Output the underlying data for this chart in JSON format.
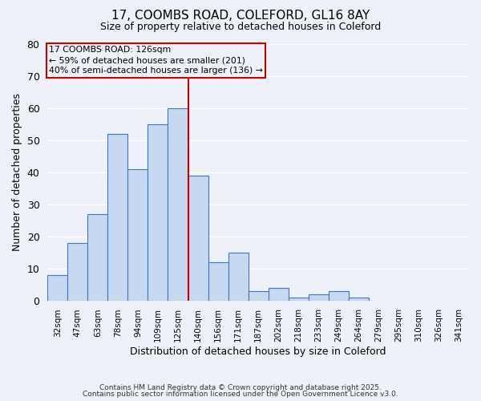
{
  "title1": "17, COOMBS ROAD, COLEFORD, GL16 8AY",
  "title2": "Size of property relative to detached houses in Coleford",
  "xlabel": "Distribution of detached houses by size in Coleford",
  "ylabel": "Number of detached properties",
  "bin_labels": [
    "32sqm",
    "47sqm",
    "63sqm",
    "78sqm",
    "94sqm",
    "109sqm",
    "125sqm",
    "140sqm",
    "156sqm",
    "171sqm",
    "187sqm",
    "202sqm",
    "218sqm",
    "233sqm",
    "249sqm",
    "264sqm",
    "279sqm",
    "295sqm",
    "310sqm",
    "326sqm",
    "341sqm"
  ],
  "bar_heights": [
    8,
    18,
    27,
    52,
    41,
    55,
    60,
    39,
    12,
    15,
    3,
    4,
    1,
    2,
    3,
    1,
    0,
    0,
    0,
    0,
    0
  ],
  "bar_color": "#c6d9f1",
  "bar_edge_color": "#4472c4",
  "vline_bin": 6,
  "vline_color": "#cc0000",
  "annotation_title": "17 COOMBS ROAD: 126sqm",
  "annotation_line1": "← 59% of detached houses are smaller (201)",
  "annotation_line2": "40% of semi-detached houses are larger (136) →",
  "annotation_box_edge_color": "#cc0000",
  "ylim": [
    0,
    80
  ],
  "yticks": [
    0,
    10,
    20,
    30,
    40,
    50,
    60,
    70,
    80
  ],
  "footer1": "Contains HM Land Registry data © Crown copyright and database right 2025.",
  "footer2": "Contains public sector information licensed under the Open Government Licence v3.0.",
  "bg_color": "#eef2f8",
  "grid_color": "#ffffff"
}
